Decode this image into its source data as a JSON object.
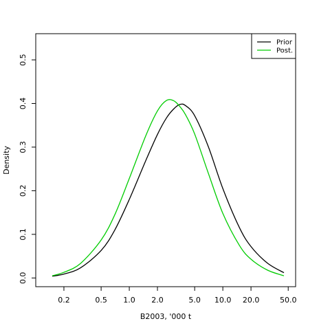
{
  "chart_data": {
    "type": "line",
    "xlabel": "B2003, '000 t",
    "ylabel": "Density",
    "x_scale": "log",
    "xlim": [
      0.1,
      60
    ],
    "ylim": [
      -0.02,
      0.56
    ],
    "x_ticks": [
      {
        "value": 0.2,
        "label": "0.2"
      },
      {
        "value": 0.5,
        "label": "0.5"
      },
      {
        "value": 1.0,
        "label": "1.0"
      },
      {
        "value": 2.0,
        "label": "2.0"
      },
      {
        "value": 5.0,
        "label": "5.0"
      },
      {
        "value": 10.0,
        "label": "10.0"
      },
      {
        "value": 20.0,
        "label": "20.0"
      },
      {
        "value": 50.0,
        "label": "50.0"
      }
    ],
    "y_ticks": [
      {
        "value": 0.0,
        "label": "0.0"
      },
      {
        "value": 0.1,
        "label": "0.1"
      },
      {
        "value": 0.2,
        "label": "0.2"
      },
      {
        "value": 0.3,
        "label": "0.3"
      },
      {
        "value": 0.4,
        "label": "0.4"
      },
      {
        "value": 0.5,
        "label": "0.5"
      }
    ],
    "grid": false,
    "legend": {
      "position": "top-right"
    },
    "series": [
      {
        "name": "Prior",
        "color": "#000000",
        "x": [
          0.15,
          0.2,
          0.3,
          0.5,
          0.7,
          1.0,
          1.5,
          2.0,
          2.5,
          3.0,
          3.5,
          4.0,
          5.0,
          7.0,
          10.0,
          15.0,
          20.0,
          30.0,
          45.0
        ],
        "y": [
          0.004,
          0.009,
          0.023,
          0.063,
          0.11,
          0.18,
          0.269,
          0.329,
          0.367,
          0.388,
          0.398,
          0.395,
          0.372,
          0.301,
          0.205,
          0.116,
          0.072,
          0.034,
          0.012
        ]
      },
      {
        "name": "Post.",
        "color": "#00cc00",
        "x": [
          0.15,
          0.2,
          0.3,
          0.5,
          0.7,
          1.0,
          1.5,
          2.0,
          2.5,
          3.0,
          3.5,
          4.0,
          5.0,
          7.0,
          10.0,
          15.0,
          20.0,
          30.0,
          45.0
        ],
        "y": [
          0.005,
          0.013,
          0.033,
          0.087,
          0.145,
          0.228,
          0.326,
          0.383,
          0.407,
          0.406,
          0.392,
          0.374,
          0.33,
          0.24,
          0.148,
          0.075,
          0.043,
          0.018,
          0.005
        ]
      }
    ]
  }
}
